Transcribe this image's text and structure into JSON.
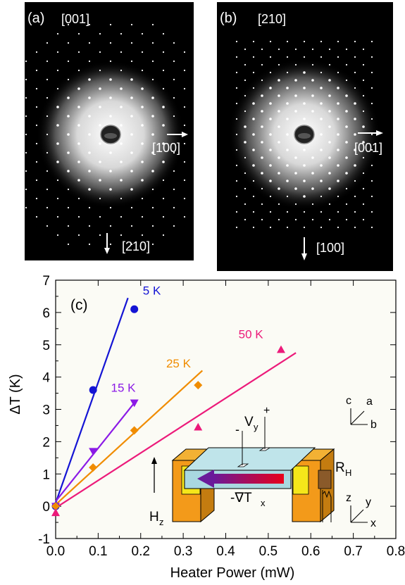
{
  "panels": {
    "a": {
      "tag": "(a)",
      "zone": "[001]",
      "dir_right": "[100]",
      "dir_down": "[210]"
    },
    "b": {
      "tag": "(b)",
      "zone": "[210]",
      "dir_right": "[001]",
      "dir_down": "[100]"
    }
  },
  "inset": {
    "vy": "V",
    "vy_sub": "y",
    "minus": "-",
    "plus": "+",
    "rh": "R",
    "rh_sub": "H",
    "hz": "H",
    "hz_sub": "z",
    "grad": "-∇T",
    "grad_sub": "x",
    "axes1": {
      "c": "c",
      "a": "a",
      "b": "b"
    },
    "axes2": {
      "z": "z",
      "y": "y",
      "x": "x"
    }
  },
  "chart_data": {
    "type": "scatter",
    "panel_label": "(c)",
    "xlabel": "Heater Power (mW)",
    "ylabel": "ΔT (K)",
    "xlim": [
      0,
      0.8
    ],
    "ylim": [
      -1,
      7
    ],
    "xticks": [
      "0.0",
      "0.1",
      "0.2",
      "0.3",
      "0.4",
      "0.5",
      "0.6",
      "0.7",
      "0.8"
    ],
    "yticks": [
      "-1",
      "0",
      "1",
      "2",
      "3",
      "4",
      "5",
      "6",
      "7"
    ],
    "series": [
      {
        "name": "5 K",
        "color": "#1414d4",
        "marker": "circle",
        "x": [
          0,
          0.088,
          0.185
        ],
        "y": [
          0,
          3.6,
          6.1
        ],
        "fit": [
          [
            0,
            0.1
          ],
          [
            0.17,
            6.45
          ]
        ]
      },
      {
        "name": "15 K",
        "color": "#8b1ae6",
        "marker": "triangle-down",
        "x": [
          0,
          0.088,
          0.185
        ],
        "y": [
          0,
          1.7,
          3.2
        ],
        "fit": [
          [
            0,
            0.15
          ],
          [
            0.185,
            3.2
          ]
        ]
      },
      {
        "name": "25 K",
        "color": "#f08c00",
        "marker": "diamond",
        "x": [
          0,
          0.088,
          0.185,
          0.335
        ],
        "y": [
          0,
          1.2,
          2.35,
          3.75
        ],
        "fit": [
          [
            0,
            0.05
          ],
          [
            0.345,
            4.2
          ]
        ]
      },
      {
        "name": "50 K",
        "color": "#ec1a7a",
        "marker": "triangle-up",
        "x": [
          0,
          0.335,
          0.53
        ],
        "y": [
          -0.2,
          2.45,
          4.85
        ],
        "fit": [
          [
            0,
            -0.05
          ],
          [
            0.565,
            4.75
          ]
        ]
      }
    ]
  }
}
